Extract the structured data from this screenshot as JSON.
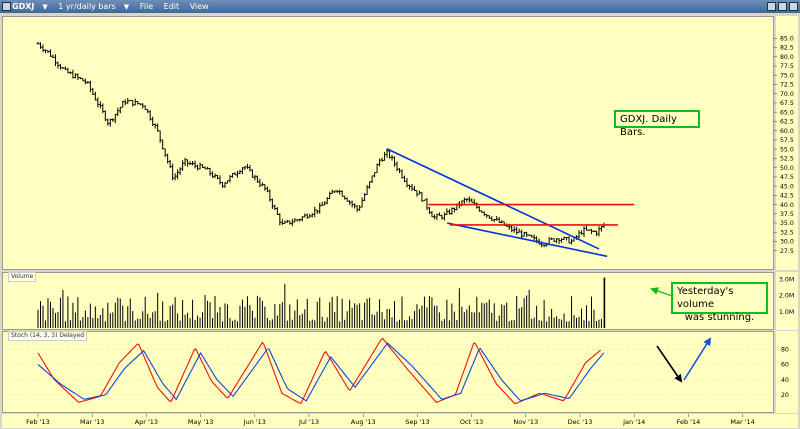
{
  "window": {
    "ticker": "GDXJ",
    "interval": "1 yr/daily bars",
    "menu": [
      "File",
      "Edit",
      "View"
    ]
  },
  "colors": {
    "bars": "#000000",
    "trendline_blue": "#0033dd",
    "resistance_red": "#ee1111",
    "stoch_k": "#ee1111",
    "stoch_d": "#1144dd",
    "annotation_border": "#11bb22",
    "arrow_blue": "#1155dd"
  },
  "panes": {
    "volume_label": "Volume",
    "stoch_label": "Stoch (14, 3, 3) Delayed"
  },
  "annotations": {
    "title_box": "GDXJ. Daily Bars.",
    "volume_note_line1": "Yesterday's volume",
    "volume_note_line2": "was stunning."
  },
  "chart_data": {
    "type": "ohlc-bar",
    "x_tick_labels": [
      "Feb '13",
      "Mar '13",
      "Apr '13",
      "May '13",
      "Jun '13",
      "Jul '13",
      "Aug '13",
      "Sep '13",
      "Oct '13",
      "Nov '13",
      "Dec '13",
      "Jan '14",
      "Feb '14",
      "Mar '14"
    ],
    "price_axis": {
      "ylim": [
        25.0,
        87.5
      ],
      "tick_labels": [
        "85.0",
        "82.5",
        "80.0",
        "77.5",
        "75.0",
        "72.5",
        "70.0",
        "67.5",
        "65.0",
        "62.5",
        "60.0",
        "57.5",
        "55.0",
        "52.5",
        "50.0",
        "47.5",
        "45.0",
        "42.5",
        "40.0",
        "37.5",
        "35.0",
        "32.5",
        "30.0",
        "27.5"
      ]
    },
    "price_anchors": [
      {
        "x": 0.0,
        "y": 83.5
      },
      {
        "x": 0.2,
        "y": 81.0
      },
      {
        "x": 0.5,
        "y": 76.0
      },
      {
        "x": 0.9,
        "y": 73.0
      },
      {
        "x": 1.3,
        "y": 62.0
      },
      {
        "x": 1.6,
        "y": 68.0
      },
      {
        "x": 1.95,
        "y": 67.0
      },
      {
        "x": 2.2,
        "y": 60.0
      },
      {
        "x": 2.5,
        "y": 47.0
      },
      {
        "x": 2.7,
        "y": 51.5
      },
      {
        "x": 3.1,
        "y": 49.5
      },
      {
        "x": 3.4,
        "y": 45.5
      },
      {
        "x": 3.8,
        "y": 50.5
      },
      {
        "x": 4.2,
        "y": 44.0
      },
      {
        "x": 4.5,
        "y": 34.5
      },
      {
        "x": 4.8,
        "y": 36.0
      },
      {
        "x": 5.2,
        "y": 39.0
      },
      {
        "x": 5.5,
        "y": 44.5
      },
      {
        "x": 5.9,
        "y": 38.5
      },
      {
        "x": 6.3,
        "y": 52.0
      },
      {
        "x": 6.45,
        "y": 54.0
      },
      {
        "x": 6.8,
        "y": 46.0
      },
      {
        "x": 7.05,
        "y": 42.5
      },
      {
        "x": 7.3,
        "y": 36.5
      },
      {
        "x": 7.5,
        "y": 37.0
      },
      {
        "x": 7.9,
        "y": 41.5
      },
      {
        "x": 8.3,
        "y": 37.0
      },
      {
        "x": 8.7,
        "y": 33.5
      },
      {
        "x": 9.3,
        "y": 29.5
      },
      {
        "x": 9.6,
        "y": 31.0
      },
      {
        "x": 9.85,
        "y": 30.0
      },
      {
        "x": 10.05,
        "y": 33.0
      },
      {
        "x": 10.3,
        "y": 32.5
      },
      {
        "x": 10.45,
        "y": 34.5
      }
    ],
    "lines": [
      {
        "kind": "trend",
        "color": "blue",
        "from": [
          6.45,
          55.0
        ],
        "to": [
          10.35,
          28.0
        ]
      },
      {
        "kind": "trend",
        "color": "blue",
        "from": [
          7.55,
          35.0
        ],
        "to": [
          10.5,
          26.0
        ]
      },
      {
        "kind": "level",
        "color": "red",
        "from": [
          7.2,
          40.0
        ],
        "to": [
          11.0,
          40.0
        ]
      },
      {
        "kind": "level",
        "color": "red",
        "from": [
          7.6,
          34.5
        ],
        "to": [
          10.7,
          34.5
        ]
      }
    ],
    "volume": {
      "tick_labels": [
        "3.0M",
        "2.0M",
        "1.0M"
      ],
      "ylim": [
        0,
        3.2
      ],
      "typical_range": [
        0.4,
        2.0
      ],
      "last_bar": 3.1
    },
    "stochastic": {
      "tick_labels": [
        "80",
        "60",
        "40",
        "20"
      ],
      "ylim": [
        0,
        100
      ],
      "k_anchors": [
        {
          "x": 0.0,
          "y": 75
        },
        {
          "x": 0.3,
          "y": 40
        },
        {
          "x": 0.75,
          "y": 10
        },
        {
          "x": 1.15,
          "y": 18
        },
        {
          "x": 1.5,
          "y": 62
        },
        {
          "x": 1.85,
          "y": 88
        },
        {
          "x": 2.2,
          "y": 30
        },
        {
          "x": 2.45,
          "y": 10
        },
        {
          "x": 2.9,
          "y": 82
        },
        {
          "x": 3.2,
          "y": 38
        },
        {
          "x": 3.5,
          "y": 15
        },
        {
          "x": 4.15,
          "y": 90
        },
        {
          "x": 4.5,
          "y": 22
        },
        {
          "x": 4.85,
          "y": 8
        },
        {
          "x": 5.3,
          "y": 78
        },
        {
          "x": 5.75,
          "y": 25
        },
        {
          "x": 6.35,
          "y": 95
        },
        {
          "x": 6.8,
          "y": 55
        },
        {
          "x": 7.35,
          "y": 10
        },
        {
          "x": 7.7,
          "y": 20
        },
        {
          "x": 8.05,
          "y": 90
        },
        {
          "x": 8.45,
          "y": 35
        },
        {
          "x": 8.8,
          "y": 8
        },
        {
          "x": 9.25,
          "y": 22
        },
        {
          "x": 9.7,
          "y": 12
        },
        {
          "x": 10.1,
          "y": 62
        },
        {
          "x": 10.4,
          "y": 80
        }
      ],
      "d_anchors": [
        {
          "x": 0.0,
          "y": 60
        },
        {
          "x": 0.4,
          "y": 35
        },
        {
          "x": 0.85,
          "y": 14
        },
        {
          "x": 1.25,
          "y": 20
        },
        {
          "x": 1.6,
          "y": 55
        },
        {
          "x": 1.95,
          "y": 78
        },
        {
          "x": 2.3,
          "y": 35
        },
        {
          "x": 2.55,
          "y": 14
        },
        {
          "x": 3.0,
          "y": 75
        },
        {
          "x": 3.3,
          "y": 40
        },
        {
          "x": 3.6,
          "y": 18
        },
        {
          "x": 4.25,
          "y": 82
        },
        {
          "x": 4.6,
          "y": 28
        },
        {
          "x": 4.95,
          "y": 12
        },
        {
          "x": 5.4,
          "y": 70
        },
        {
          "x": 5.85,
          "y": 30
        },
        {
          "x": 6.45,
          "y": 88
        },
        {
          "x": 6.9,
          "y": 58
        },
        {
          "x": 7.45,
          "y": 14
        },
        {
          "x": 7.8,
          "y": 22
        },
        {
          "x": 8.15,
          "y": 82
        },
        {
          "x": 8.55,
          "y": 40
        },
        {
          "x": 8.9,
          "y": 12
        },
        {
          "x": 9.35,
          "y": 22
        },
        {
          "x": 9.8,
          "y": 15
        },
        {
          "x": 10.2,
          "y": 55
        },
        {
          "x": 10.45,
          "y": 76
        }
      ]
    }
  }
}
